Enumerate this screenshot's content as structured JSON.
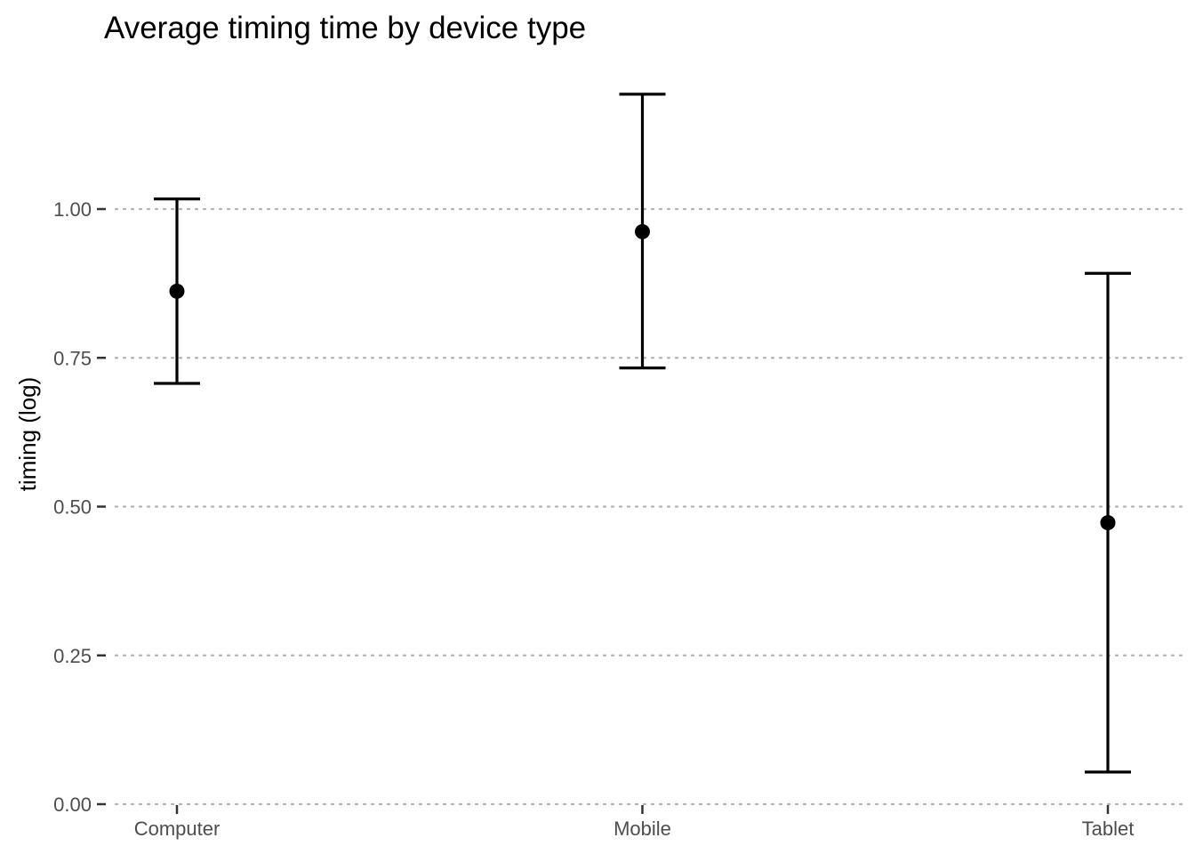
{
  "chart_data": {
    "type": "errorbar",
    "title": "Average timing time by device type",
    "xlabel": "",
    "ylabel": "timing (log)",
    "categories": [
      "Computer",
      "Mobile",
      "Tablet"
    ],
    "mean": [
      0.862,
      0.962,
      0.473
    ],
    "lower": [
      0.707,
      0.733,
      0.054
    ],
    "upper": [
      1.017,
      1.193,
      0.892
    ],
    "ylim": [
      0,
      1.25
    ],
    "yticks": [
      0,
      0.25,
      0.5,
      0.75,
      1.0
    ],
    "ytick_labels": [
      "0.00",
      "0.25",
      "0.50",
      "0.75",
      "1.00"
    ],
    "grid": "horizontal major, dotted",
    "legend": "none",
    "colors": {
      "marks": "#000000",
      "grid": "#b3b3b3",
      "tick_text": "#4d4d4d"
    }
  }
}
